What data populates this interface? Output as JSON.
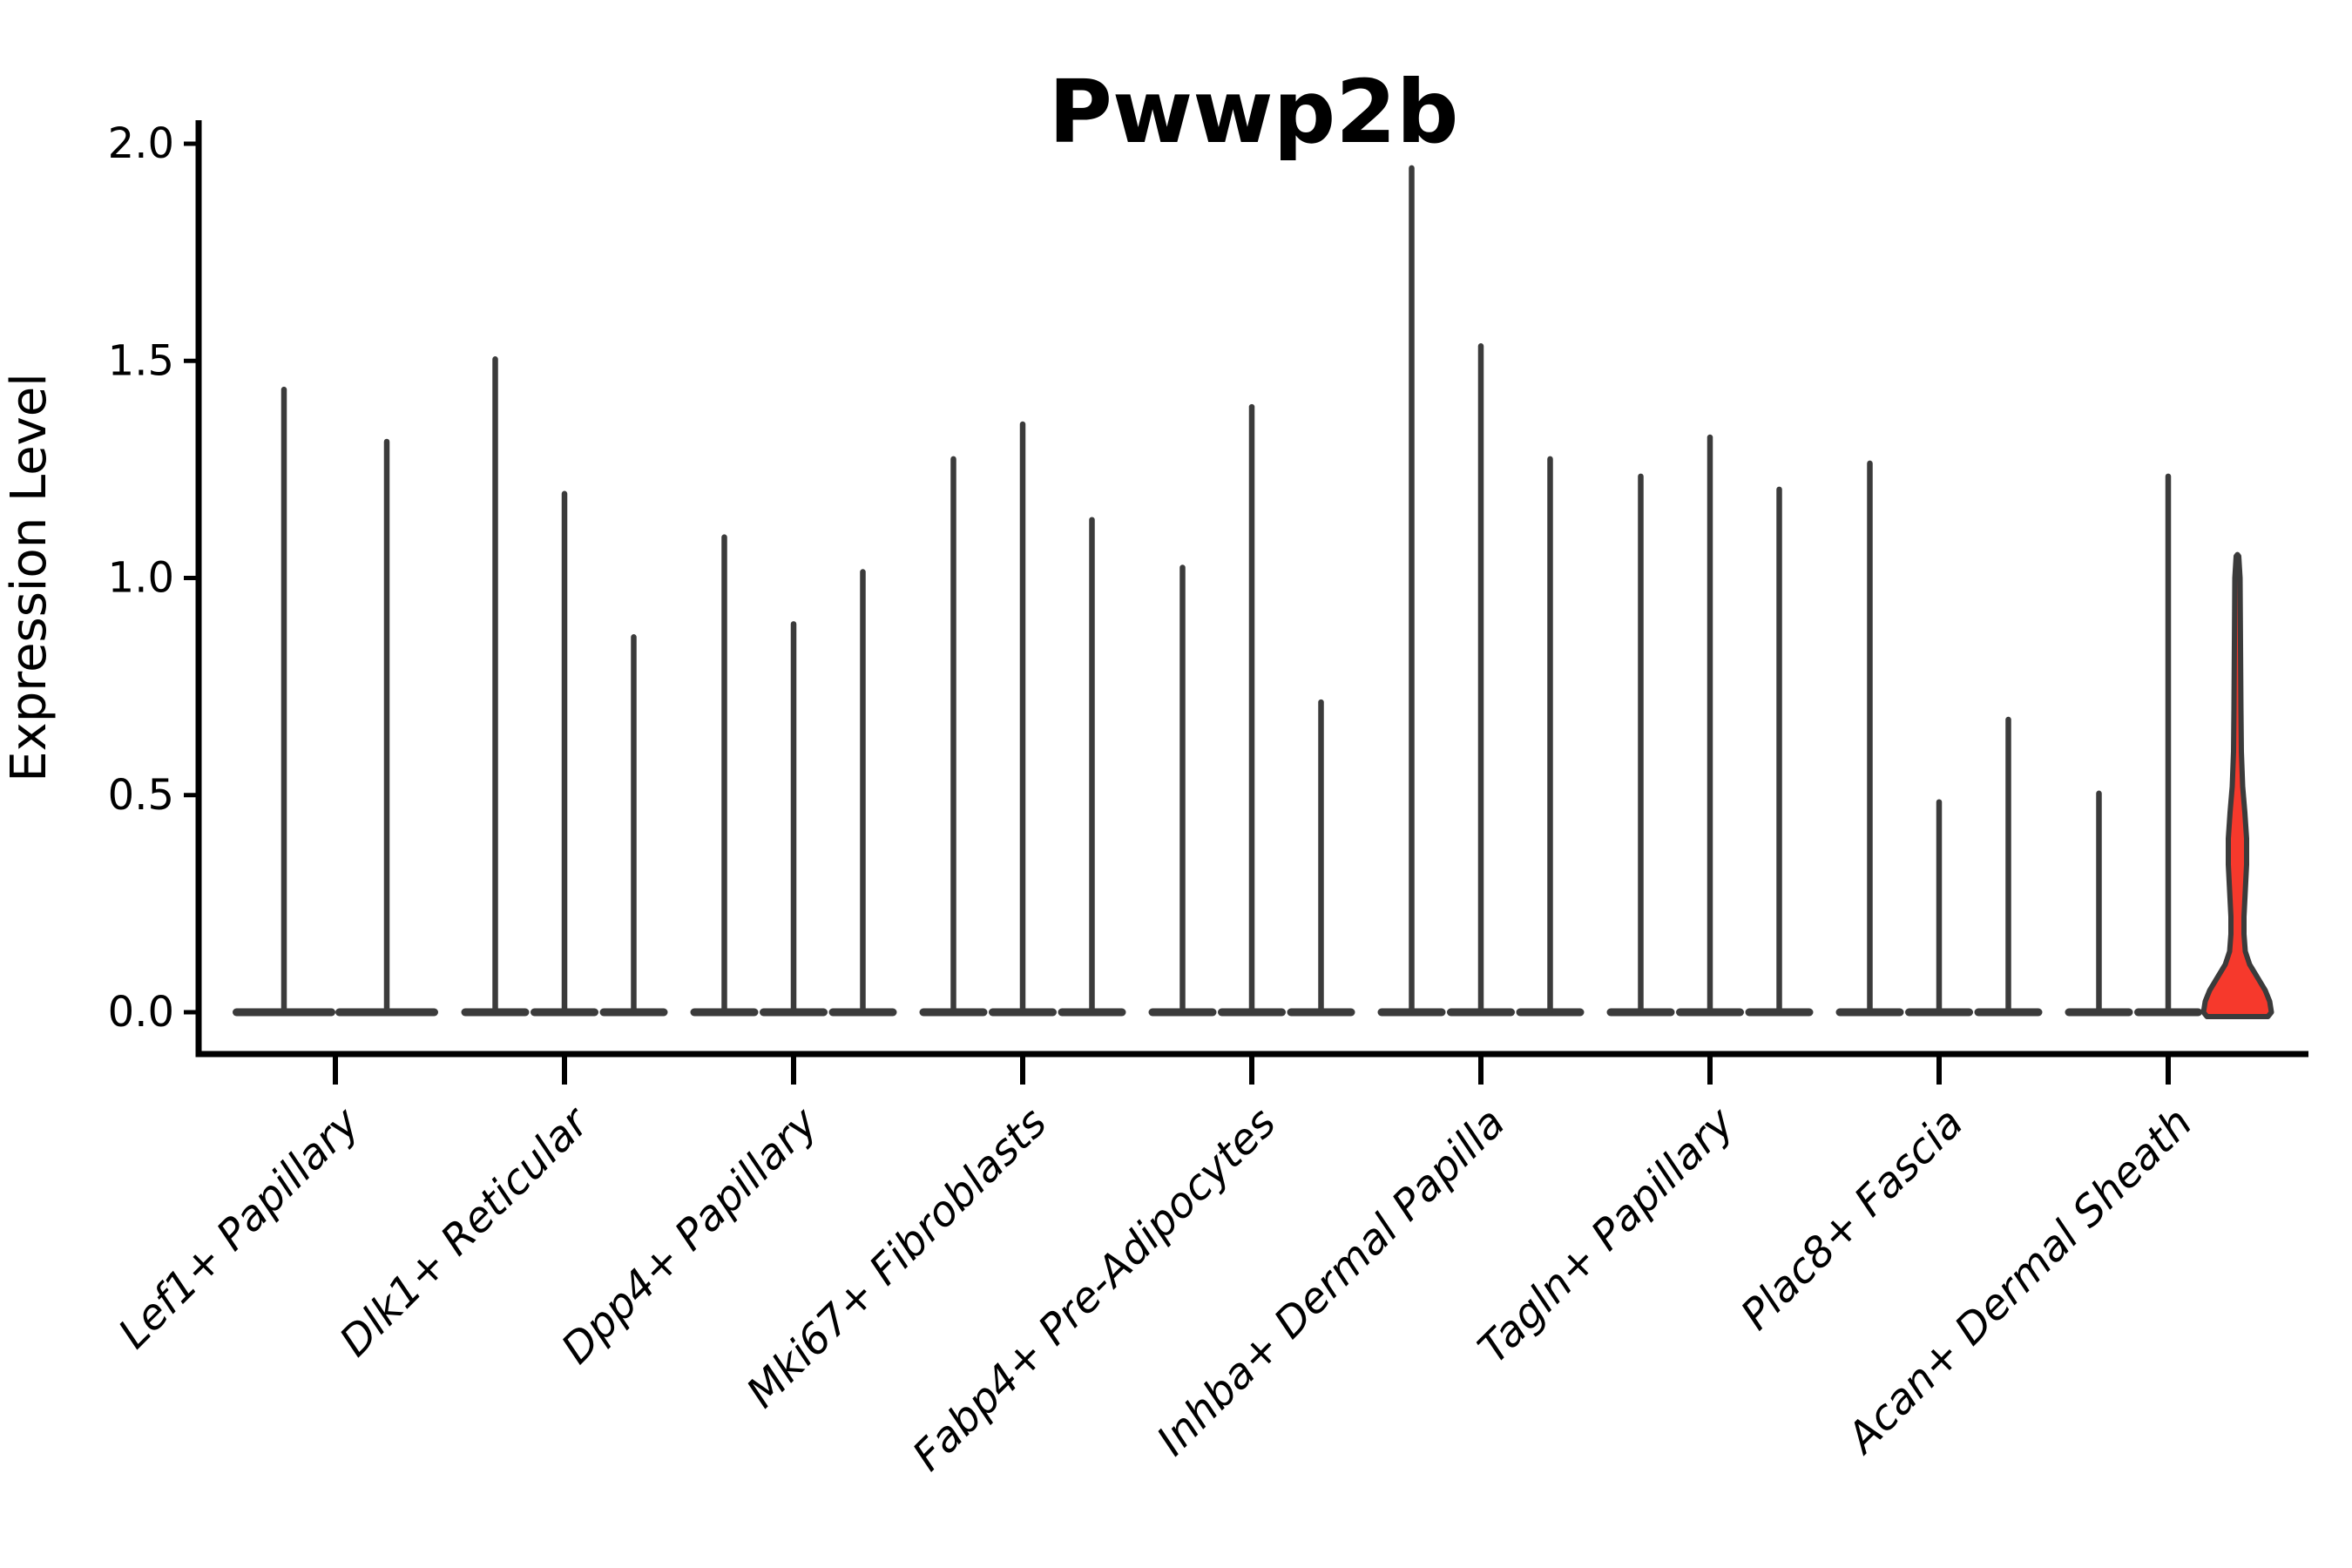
{
  "chart_data": {
    "type": "violin",
    "title": "Pwwp2b",
    "ylabel": "Expression Level",
    "xlabel": "",
    "ylim": [
      0,
      2.0
    ],
    "yticks": [
      0,
      0.5,
      1.0,
      1.5,
      2.0
    ],
    "ytick_labels": [
      "0.0",
      "0.5",
      "1.0",
      "1.5",
      "2.0"
    ],
    "grid": false,
    "legend": null,
    "outline_color": "#3B3B3B",
    "axis_color": "#000000",
    "highlight_fill": "#F6392C",
    "style_note": "Expression concentrated at 0 (flat dark base blobs) with thin spike tails up to each violin's max; only the highlighted violin has visible width and red fill.",
    "groups": [
      {
        "label": "Lef1+ Papillary",
        "violins": [
          {
            "max": 1.44
          },
          {
            "max": 1.32
          }
        ]
      },
      {
        "label": "Dlk1+ Reticular",
        "violins": [
          {
            "max": 1.51
          },
          {
            "max": 1.2
          },
          {
            "max": 0.87
          }
        ]
      },
      {
        "label": "Dpp4+ Papillary",
        "violins": [
          {
            "max": 1.1
          },
          {
            "max": 0.9
          },
          {
            "max": 1.02
          }
        ]
      },
      {
        "label": "Mki67+ Fibroblasts",
        "violins": [
          {
            "max": 1.28
          },
          {
            "max": 1.36
          },
          {
            "max": 1.14
          }
        ]
      },
      {
        "label": "Fabp4+ Pre-Adipocytes",
        "violins": [
          {
            "max": 1.03
          },
          {
            "max": 1.4
          },
          {
            "max": 0.72
          }
        ]
      },
      {
        "label": "Inhba+ Dermal Papilla",
        "violins": [
          {
            "max": 1.95
          },
          {
            "max": 1.54
          },
          {
            "max": 1.28
          }
        ]
      },
      {
        "label": "Tagln+ Papillary",
        "violins": [
          {
            "max": 1.24
          },
          {
            "max": 1.33
          },
          {
            "max": 1.21
          }
        ]
      },
      {
        "label": "Plac8+ Fascia",
        "violins": [
          {
            "max": 1.27
          },
          {
            "max": 0.49
          },
          {
            "max": 0.68
          }
        ]
      },
      {
        "label": "Acan+ Dermal Sheath",
        "violins": [
          {
            "max": 0.51
          },
          {
            "max": 1.24
          },
          {
            "max": 1.05,
            "highlight": true,
            "profile": [
              [
                1.05,
                1.5
              ],
              [
                1.0,
                3
              ],
              [
                0.85,
                3.5
              ],
              [
                0.7,
                4
              ],
              [
                0.6,
                4.5
              ],
              [
                0.52,
                6
              ],
              [
                0.46,
                8.5
              ],
              [
                0.4,
                10.5
              ],
              [
                0.34,
                10.5
              ],
              [
                0.28,
                9
              ],
              [
                0.22,
                7.5
              ],
              [
                0.18,
                7.5
              ],
              [
                0.14,
                9
              ],
              [
                0.11,
                14
              ],
              [
                0.08,
                23
              ],
              [
                0.05,
                32
              ],
              [
                0.025,
                37
              ],
              [
                0.0,
                39
              ]
            ]
          }
        ]
      }
    ]
  }
}
